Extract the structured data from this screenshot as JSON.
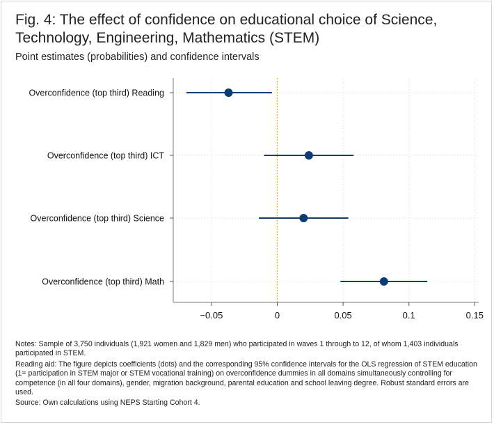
{
  "title": "Fig. 4: The effect of confidence on educational choice of Science, Technology, Engineering, Mathematics (STEM)",
  "subtitle": "Point estimates (probabilities) and confidence intervals",
  "notes": {
    "sample": "Notes: Sample of 3,750 individuals (1,921 women and 1,829 men) who participated in waves 1 through to 12, of whom 1,403 individuals participated in STEM.",
    "reading_aid": "Reading aid: The figure depicts coefficients (dots) and the corresponding 95% confidence intervals for the OLS regression of STEM education (1= participation in STEM major or STEM vocational training) on overconfidence dummies in all domains simultaneously controlling for competence (in all four domains), gender, migration background, parental education and school leaving degree. Robust standard errors are used.",
    "source": "Source: Own calculations using NEPS Starting Cohort 4."
  },
  "colors": {
    "marker": "#0d3b73",
    "ci_line": "#0d3b73",
    "zero_line": "#d6c400",
    "grid": "#e3e3e3"
  },
  "chart_data": {
    "type": "scatter",
    "orientation": "horizontal-coefficient-plot",
    "categories": [
      "Overconfidence (top third) Reading",
      "Overconfidence (top third) ICT",
      "Overconfidence (top third) Science",
      "Overconfidence (top third) Math"
    ],
    "estimates": [
      -0.037,
      0.024,
      0.02,
      0.081
    ],
    "ci_low": [
      -0.069,
      -0.01,
      -0.014,
      0.048
    ],
    "ci_high": [
      -0.004,
      0.058,
      0.054,
      0.114
    ],
    "xlim": [
      -0.079,
      0.153
    ],
    "xticks": [
      -0.05,
      0,
      0.05,
      0.1,
      0.15
    ],
    "xtick_labels": [
      "−0.05",
      "0",
      "0.05",
      "0.1",
      "0.15"
    ],
    "reference_line": 0,
    "grid": true,
    "xlabel": "",
    "ylabel": ""
  }
}
